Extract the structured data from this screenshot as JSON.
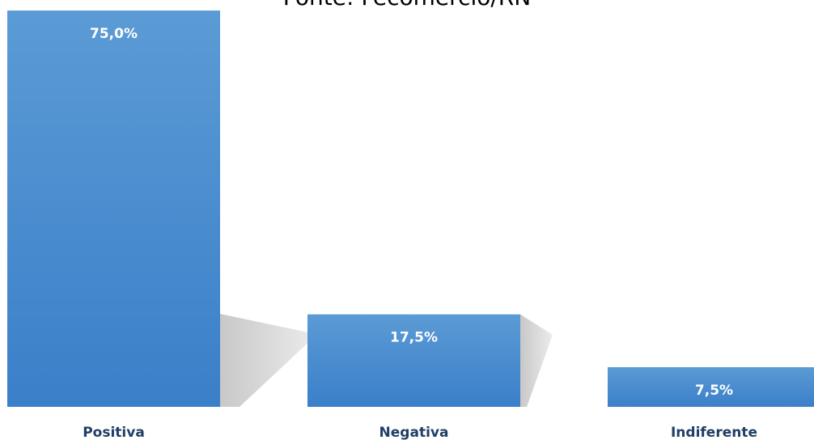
{
  "source_caption": "Fonte: Fecomércio/RN",
  "chart_data": {
    "type": "bar",
    "categories": [
      "Positiva",
      "Negativa",
      "Indiferente"
    ],
    "values": [
      75.0,
      17.5,
      7.5
    ],
    "data_labels": [
      "75,0%",
      "17,5%",
      "7,5%"
    ],
    "unit": "%",
    "ylim": [
      0,
      75
    ],
    "grid": false,
    "legend": "none",
    "colors": {
      "bar_top": "#5b9bd5",
      "bar_bottom": "#3a7fc9",
      "tick_label": "#1f3f66",
      "data_label": "#ffffff",
      "shadow": "#c8c8c8"
    }
  }
}
